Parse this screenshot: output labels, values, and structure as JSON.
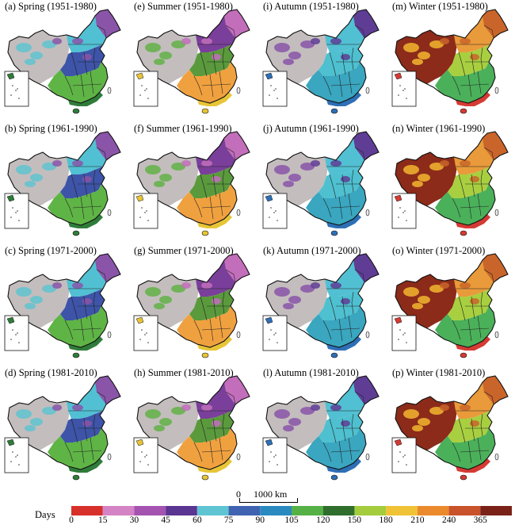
{
  "panels": [
    {
      "label": "(a) Spring (1951-1980)",
      "season": "Spring"
    },
    {
      "label": "(e) Summer (1951-1980)",
      "season": "Summer"
    },
    {
      "label": "(i) Autumn (1951-1980)",
      "season": "Autumn"
    },
    {
      "label": "(m) Winter (1951-1980)",
      "season": "Winter"
    },
    {
      "label": "(b) Spring (1961-1990)",
      "season": "Spring"
    },
    {
      "label": "(f) Summer (1961-1990)",
      "season": "Summer"
    },
    {
      "label": "(j) Autumn (1961-1990)",
      "season": "Autumn"
    },
    {
      "label": "(n) Winter (1961-1990)",
      "season": "Winter"
    },
    {
      "label": "(c) Spring (1971-2000)",
      "season": "Spring"
    },
    {
      "label": "(g) Summer (1971-2000)",
      "season": "Summer"
    },
    {
      "label": "(k) Autumn (1971-2000)",
      "season": "Autumn"
    },
    {
      "label": "(o) Winter (1971-2000)",
      "season": "Winter"
    },
    {
      "label": "(d) Spring (1981-2010)",
      "season": "Spring"
    },
    {
      "label": "(h) Summer (1981-2010)",
      "season": "Summer"
    },
    {
      "label": "(l) Autumn (1981-2010)",
      "season": "Autumn"
    },
    {
      "label": "(p) Winter (1981-2010)",
      "season": "Winter"
    }
  ],
  "season_palette": {
    "Spring": {
      "west": "#c3bdbd",
      "tibet_spots": "#5fc4d0",
      "northeast": "#8a55a9",
      "north": "#52c0d3",
      "center": "#3d54a8",
      "south": "#5fb446",
      "coast": "#2f7c3a"
    },
    "Summer": {
      "west": "#c3bdbd",
      "tibet_spots": "#61b146",
      "northeast": "#c26ebb",
      "north": "#7a3f9a",
      "center": "#5a9a3c",
      "south": "#f0a13f",
      "coast": "#e7c537"
    },
    "Autumn": {
      "west": "#c3bdbd",
      "tibet_spots": "#8a55a9",
      "northeast": "#5f3d95",
      "north": "#52c0d3",
      "center": "#4ec0cf",
      "south": "#3aa6bf",
      "coast": "#2e6fb5"
    },
    "Winter": {
      "west": "#8c2b1a",
      "tibet_spots": "#f2b630",
      "northeast": "#c9652a",
      "north": "#e99a3a",
      "center": "#a8cf40",
      "south": "#4bb05a",
      "coast": "#d43b34"
    }
  },
  "scale_bar": {
    "zero": "0",
    "distance": "1000 km"
  },
  "legend": {
    "title": "Days",
    "ticks": [
      "0",
      "15",
      "30",
      "45",
      "60",
      "75",
      "90",
      "105",
      "120",
      "150",
      "180",
      "210",
      "240",
      "365"
    ],
    "colors": [
      "#d7302b",
      "#d483c4",
      "#a453b0",
      "#5b3592",
      "#5fc5d2",
      "#4063b1",
      "#2a8ac0",
      "#55b146",
      "#2f6e2d",
      "#a4cc3c",
      "#f0c236",
      "#ea8a2c",
      "#c9532a",
      "#7a2217"
    ]
  }
}
